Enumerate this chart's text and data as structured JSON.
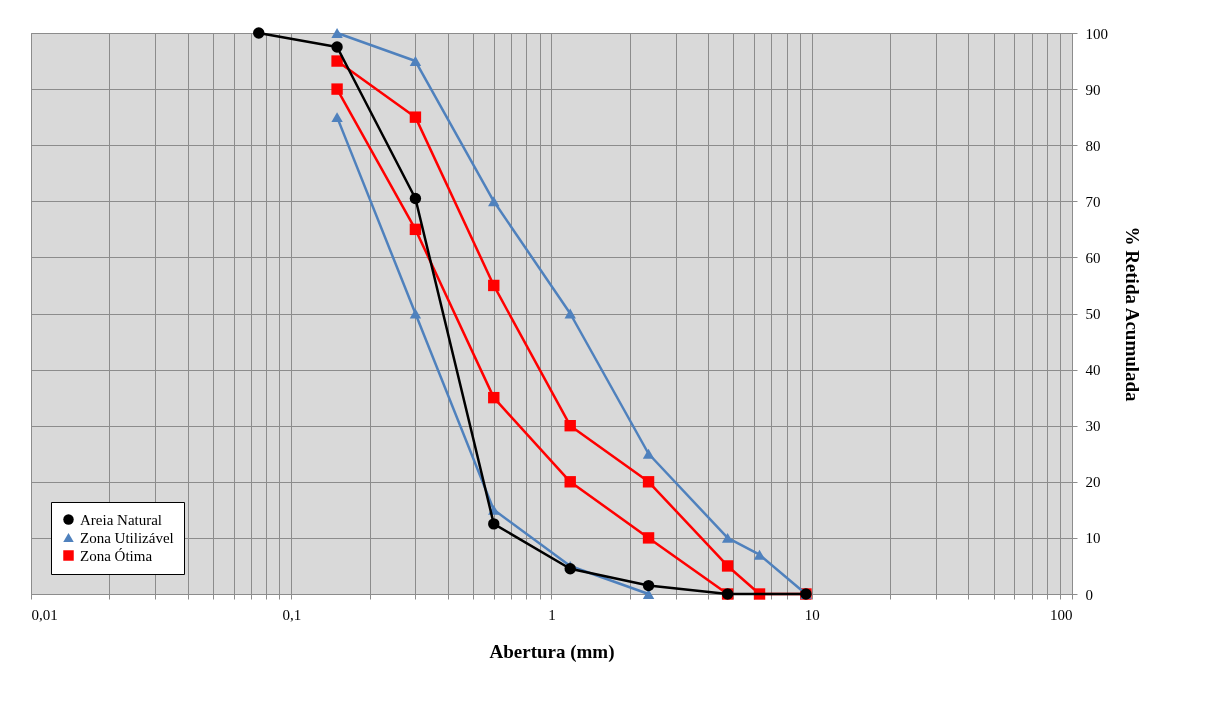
{
  "chart_data": {
    "type": "line",
    "xlabel": "Abertura (mm)",
    "ylabel": "% Retida Acumulada",
    "log": "x",
    "xlim": [
      0.01,
      100
    ],
    "ylim": [
      0,
      100
    ],
    "xticks": [
      {
        "value": 0.01,
        "label": "0,01"
      },
      {
        "value": 0.02,
        "label": null
      },
      {
        "value": 0.03,
        "label": null
      },
      {
        "value": 0.04,
        "label": null
      },
      {
        "value": 0.05,
        "label": null
      },
      {
        "value": 0.06,
        "label": null
      },
      {
        "value": 0.07,
        "label": null
      },
      {
        "value": 0.08,
        "label": null
      },
      {
        "value": 0.09,
        "label": null
      },
      {
        "value": 0.1,
        "label": "0,1"
      },
      {
        "value": 0.2,
        "label": null
      },
      {
        "value": 0.3,
        "label": null
      },
      {
        "value": 0.4,
        "label": null
      },
      {
        "value": 0.5,
        "label": null
      },
      {
        "value": 0.6,
        "label": null
      },
      {
        "value": 0.7,
        "label": null
      },
      {
        "value": 0.8,
        "label": null
      },
      {
        "value": 0.9,
        "label": null
      },
      1,
      {
        "value": 2,
        "label": null
      },
      {
        "value": 3,
        "label": null
      },
      {
        "value": 4,
        "label": null
      },
      {
        "value": 5,
        "label": null
      },
      {
        "value": 6,
        "label": null
      },
      {
        "value": 7,
        "label": null
      },
      {
        "value": 8,
        "label": null
      },
      {
        "value": 9,
        "label": null
      },
      10,
      {
        "value": 20,
        "label": null
      },
      {
        "value": 30,
        "label": null
      },
      {
        "value": 40,
        "label": null
      },
      {
        "value": 50,
        "label": null
      },
      {
        "value": 60,
        "label": null
      },
      {
        "value": 70,
        "label": null
      },
      {
        "value": 80,
        "label": null
      },
      {
        "value": 90,
        "label": null
      },
      100
    ],
    "yticks": [
      0,
      10,
      20,
      30,
      40,
      50,
      60,
      70,
      80,
      90,
      100
    ],
    "grid": true,
    "legend": "bottom left",
    "series": [
      {
        "name": "Areia Natural",
        "color": "#000000",
        "marker": "circle",
        "x": [
          0.075,
          0.15,
          0.3,
          0.6,
          1.18,
          2.36,
          4.75,
          9.5
        ],
        "values": [
          100,
          97.5,
          70.5,
          12.5,
          4.5,
          1.5,
          0,
          0
        ]
      },
      {
        "name": "Zona Utilizável",
        "color": "#4f81bd",
        "marker": "triangle",
        "x": [
          0.15,
          0.3,
          0.6,
          1.18,
          2.36
        ],
        "values": [
          85,
          50,
          15,
          5,
          0
        ]
      },
      {
        "name": "Zona Ótima",
        "color": "#ff0000",
        "marker": "square",
        "x": [
          0.15,
          0.3,
          0.6,
          1.18,
          2.36,
          4.75
        ],
        "values": [
          90,
          65,
          35,
          20,
          10,
          0
        ]
      },
      {
        "color": "#4f81bd",
        "marker": "triangle",
        "x": [
          0.15,
          0.3,
          0.6,
          1.18,
          2.36,
          4.75,
          6.3,
          9.5
        ],
        "values": [
          100,
          95,
          70,
          50,
          25,
          10,
          7,
          0
        ]
      },
      {
        "color": "#ff0000",
        "marker": "square",
        "x": [
          0.15,
          0.3,
          0.6,
          1.18,
          2.36,
          4.75,
          6.3,
          9.5
        ],
        "values": [
          95,
          85,
          55,
          30,
          20,
          5,
          0,
          0
        ]
      }
    ]
  }
}
